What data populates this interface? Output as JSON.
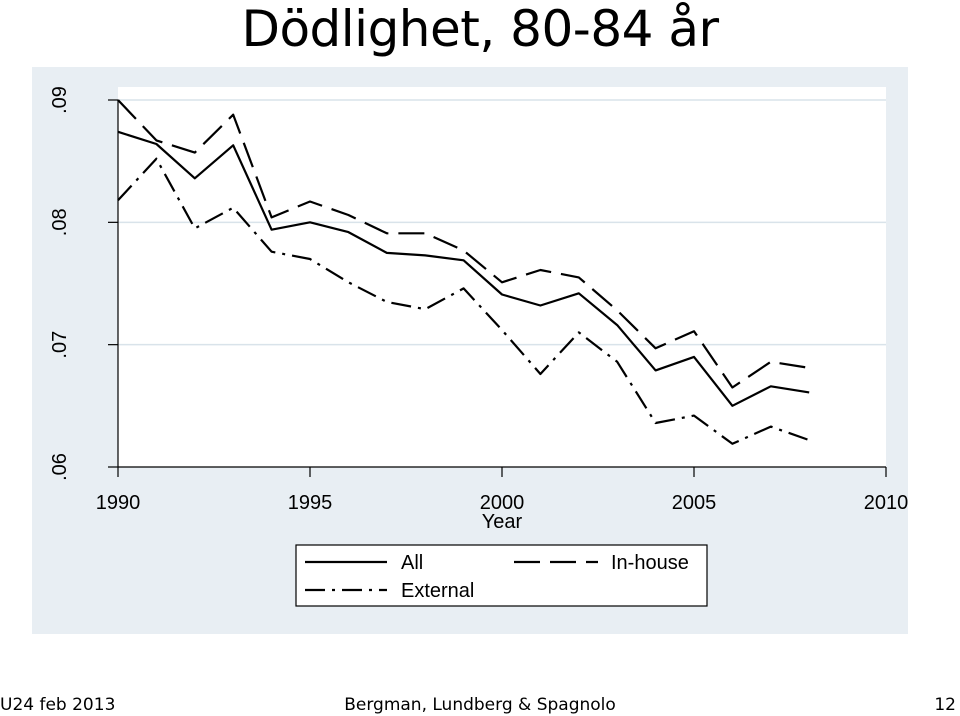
{
  "slide": {
    "title": "Dödlighet, 80-84 år",
    "footer_left": "U24 feb 2013",
    "footer_center": "Bergman, Lundberg & Spagnolo",
    "footer_right": "12"
  },
  "colors": {
    "outer_bg": "#e8eef3",
    "plot_bg": "#ffffff",
    "grid": "#d9e3ea",
    "line": "#000000"
  },
  "chart_data": {
    "type": "line",
    "title": "",
    "xlabel": "Year",
    "ylabel": "",
    "xlim": [
      1990,
      2010
    ],
    "ylim": [
      0.06,
      0.09
    ],
    "xticks": [
      1990,
      1995,
      2000,
      2005,
      2010
    ],
    "xtick_labels": [
      "1990",
      "1995",
      "2000",
      "2005",
      "2010"
    ],
    "yticks": [
      0.06,
      0.07,
      0.08,
      0.09
    ],
    "ytick_labels": [
      ".06",
      ".07",
      ".08",
      ".09"
    ],
    "grid": true,
    "legend_position": "bottom",
    "x": [
      1990,
      1991,
      1992,
      1993,
      1994,
      1995,
      1996,
      1997,
      1998,
      1999,
      2000,
      2001,
      2002,
      2003,
      2004,
      2005,
      2006,
      2007,
      2008
    ],
    "series": [
      {
        "name": "All",
        "style": "solid",
        "values": [
          0.0874,
          0.0864,
          0.0836,
          0.0863,
          0.0794,
          0.08,
          0.0792,
          0.0775,
          0.0773,
          0.0769,
          0.0741,
          0.0732,
          0.0742,
          0.0716,
          0.0679,
          0.069,
          0.065,
          0.0666,
          0.0661
        ]
      },
      {
        "name": "In-house",
        "style": "dash",
        "values": [
          0.09,
          0.0867,
          0.0857,
          0.0888,
          0.0804,
          0.0817,
          0.0806,
          0.0791,
          0.0791,
          0.0777,
          0.0751,
          0.0761,
          0.0755,
          0.0728,
          0.0697,
          0.0711,
          0.0665,
          0.0686,
          0.0681
        ]
      },
      {
        "name": "External",
        "style": "dashdot",
        "values": [
          0.0818,
          0.0852,
          0.0795,
          0.0812,
          0.0776,
          0.077,
          0.0751,
          0.0735,
          0.0729,
          0.0746,
          0.0712,
          0.0676,
          0.071,
          0.0686,
          0.0636,
          0.0642,
          0.0619,
          0.0633,
          0.0622
        ]
      }
    ]
  }
}
